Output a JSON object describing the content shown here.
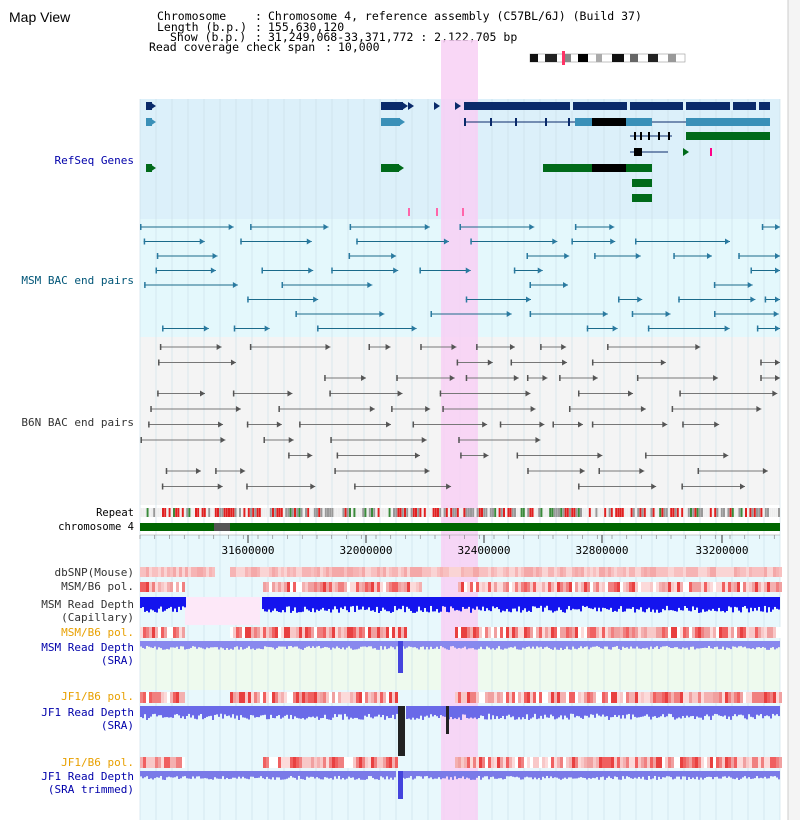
{
  "page": {
    "title": "Map View"
  },
  "info": {
    "chromosome_label": "Chromosome",
    "chromosome_value": "Chromosome 4, reference assembly (C57BL/6J) (Build 37)",
    "length_label": "Length (b.p.)",
    "length_value": "155,630,120",
    "show_label": "Show (b.p.)",
    "show_value": "31,249,068-33,371,772 : 2,122,705 bp",
    "span_label": "Read coverage check span",
    "span_value": "10,000"
  },
  "tracks": {
    "refseq": "RefSeq Genes",
    "msm_bac": "MSM BAC end pairs",
    "b6n_bac": "B6N BAC end pairs",
    "repeat": "Repeat",
    "chromosome": "chromosome 4",
    "dbsnp": "dbSNP(Mouse)",
    "msm_b6_pol_1": "MSM/B6 pol.",
    "msm_depth_cap_1": "MSM Read Depth",
    "msm_depth_cap_2": "(Capillary)",
    "msm_b6_pol_2": "MSM/B6 pol.",
    "msm_depth_sra_1": "MSM Read Depth",
    "msm_depth_sra_2": "(SRA)",
    "jf1_b6_pol_1": "JF1/B6 pol.",
    "jf1_depth_sra_1": "JF1 Read Depth",
    "jf1_depth_sra_2": "(SRA)",
    "jf1_b6_pol_2": "JF1/B6 pol.",
    "jf1_depth_trim_1": "JF1 Read Depth",
    "jf1_depth_trim_2": "(SRA trimmed)"
  },
  "axis": {
    "ticks": [
      "31600000",
      "32000000",
      "32400000",
      "32800000",
      "33200000"
    ]
  },
  "colors": {
    "track_label": "#333333",
    "blue_label": "#0000aa",
    "orange_label": "#e8a000",
    "refseq_bg": "#dcf0fa",
    "msm_bg": "#e4f8fc",
    "b6n_bg": "#f4f4f4",
    "highlight": "#f8d0f4",
    "chromosome_bar": "#006600",
    "depth_blue": "#1010ee",
    "depth_light": "#6a6ae8"
  }
}
